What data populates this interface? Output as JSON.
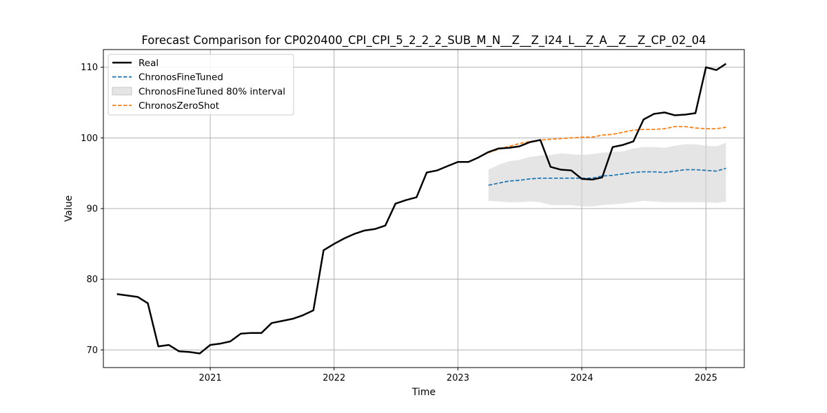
{
  "chart_data": {
    "type": "line",
    "title": "Forecast Comparison for CP020400_CPI_CPI_5_2_2_2_SUB_M_N__Z__Z_I24_L__Z_A__Z__Z_CP_02_04",
    "xlabel": "Time",
    "ylabel": "Value",
    "grid": true,
    "legend_position": "top-left",
    "xlim": [
      "2020-02-21",
      "2025-04-24"
    ],
    "ylim": [
      67.5,
      112.5
    ],
    "x_ticks": [
      "2021",
      "2022",
      "2023",
      "2024",
      "2025"
    ],
    "y_ticks": [
      70,
      80,
      90,
      100,
      110
    ],
    "series": [
      {
        "name": "Real",
        "color": "#000000",
        "style": "solid",
        "points": [
          [
            "2020-04-01",
            77.9
          ],
          [
            "2020-05-01",
            77.7
          ],
          [
            "2020-06-01",
            77.5
          ],
          [
            "2020-07-01",
            76.6
          ],
          [
            "2020-08-01",
            70.5
          ],
          [
            "2020-09-01",
            70.7
          ],
          [
            "2020-10-01",
            69.8
          ],
          [
            "2020-11-01",
            69.7
          ],
          [
            "2020-12-01",
            69.5
          ],
          [
            "2021-01-01",
            70.7
          ],
          [
            "2021-02-01",
            70.9
          ],
          [
            "2021-03-01",
            71.2
          ],
          [
            "2021-04-01",
            72.3
          ],
          [
            "2021-05-01",
            72.4
          ],
          [
            "2021-06-01",
            72.4
          ],
          [
            "2021-07-01",
            73.8
          ],
          [
            "2021-08-01",
            74.1
          ],
          [
            "2021-09-01",
            74.4
          ],
          [
            "2021-10-01",
            74.9
          ],
          [
            "2021-11-01",
            75.6
          ],
          [
            "2021-12-01",
            84.1
          ],
          [
            "2022-01-01",
            85.0
          ],
          [
            "2022-02-01",
            85.8
          ],
          [
            "2022-03-01",
            86.4
          ],
          [
            "2022-04-01",
            86.9
          ],
          [
            "2022-05-01",
            87.1
          ],
          [
            "2022-06-01",
            87.6
          ],
          [
            "2022-07-01",
            90.7
          ],
          [
            "2022-08-01",
            91.2
          ],
          [
            "2022-09-01",
            91.6
          ],
          [
            "2022-10-01",
            95.1
          ],
          [
            "2022-11-01",
            95.4
          ],
          [
            "2022-12-01",
            96.0
          ],
          [
            "2023-01-01",
            96.6
          ],
          [
            "2023-02-01",
            96.6
          ],
          [
            "2023-03-01",
            97.2
          ],
          [
            "2023-04-01",
            98.0
          ],
          [
            "2023-05-01",
            98.5
          ],
          [
            "2023-06-01",
            98.6
          ],
          [
            "2023-07-01",
            98.8
          ],
          [
            "2023-08-01",
            99.4
          ],
          [
            "2023-09-01",
            99.7
          ],
          [
            "2023-10-01",
            95.9
          ],
          [
            "2023-11-01",
            95.5
          ],
          [
            "2023-12-01",
            95.4
          ],
          [
            "2024-01-01",
            94.2
          ],
          [
            "2024-02-01",
            94.1
          ],
          [
            "2024-03-01",
            94.4
          ],
          [
            "2024-04-01",
            98.7
          ],
          [
            "2024-05-01",
            99.0
          ],
          [
            "2024-06-01",
            99.5
          ],
          [
            "2024-07-01",
            102.6
          ],
          [
            "2024-08-01",
            103.4
          ],
          [
            "2024-09-01",
            103.6
          ],
          [
            "2024-10-01",
            103.2
          ],
          [
            "2024-11-01",
            103.3
          ],
          [
            "2024-12-01",
            103.5
          ],
          [
            "2025-01-01",
            110.0
          ],
          [
            "2025-02-01",
            109.6
          ],
          [
            "2025-03-01",
            110.5
          ]
        ]
      },
      {
        "name": "ChronosFineTuned",
        "color": "#1f77b4",
        "style": "dashed",
        "points": [
          [
            "2023-04-01",
            93.3
          ],
          [
            "2023-05-01",
            93.6
          ],
          [
            "2023-06-01",
            93.9
          ],
          [
            "2023-07-01",
            94.0
          ],
          [
            "2023-08-01",
            94.2
          ],
          [
            "2023-09-01",
            94.3
          ],
          [
            "2023-10-01",
            94.3
          ],
          [
            "2023-11-01",
            94.3
          ],
          [
            "2023-12-01",
            94.3
          ],
          [
            "2024-01-01",
            94.3
          ],
          [
            "2024-02-01",
            94.3
          ],
          [
            "2024-03-01",
            94.6
          ],
          [
            "2024-04-01",
            94.7
          ],
          [
            "2024-05-01",
            94.9
          ],
          [
            "2024-06-01",
            95.1
          ],
          [
            "2024-07-01",
            95.2
          ],
          [
            "2024-08-01",
            95.2
          ],
          [
            "2024-09-01",
            95.1
          ],
          [
            "2024-10-01",
            95.3
          ],
          [
            "2024-11-01",
            95.5
          ],
          [
            "2024-12-01",
            95.5
          ],
          [
            "2025-01-01",
            95.4
          ],
          [
            "2025-02-01",
            95.3
          ],
          [
            "2025-03-01",
            95.7
          ]
        ]
      },
      {
        "name": "ChronosZeroShot",
        "color": "#ff7f0e",
        "style": "dashed",
        "points": [
          [
            "2023-04-01",
            97.9
          ],
          [
            "2023-05-01",
            98.4
          ],
          [
            "2023-06-01",
            98.8
          ],
          [
            "2023-07-01",
            99.2
          ],
          [
            "2023-08-01",
            99.5
          ],
          [
            "2023-09-01",
            99.7
          ],
          [
            "2023-10-01",
            99.8
          ],
          [
            "2023-11-01",
            99.9
          ],
          [
            "2023-12-01",
            100.0
          ],
          [
            "2024-01-01",
            100.1
          ],
          [
            "2024-02-01",
            100.1
          ],
          [
            "2024-03-01",
            100.4
          ],
          [
            "2024-04-01",
            100.5
          ],
          [
            "2024-05-01",
            100.8
          ],
          [
            "2024-06-01",
            101.1
          ],
          [
            "2024-07-01",
            101.2
          ],
          [
            "2024-08-01",
            101.2
          ],
          [
            "2024-09-01",
            101.3
          ],
          [
            "2024-10-01",
            101.6
          ],
          [
            "2024-11-01",
            101.6
          ],
          [
            "2024-12-01",
            101.4
          ],
          [
            "2025-01-01",
            101.3
          ],
          [
            "2025-02-01",
            101.3
          ],
          [
            "2025-03-01",
            101.5
          ]
        ]
      }
    ],
    "interval": {
      "name": "ChronosFineTuned 80% interval",
      "color": "#d3d3d3",
      "x": [
        "2023-04-01",
        "2023-05-01",
        "2023-06-01",
        "2023-07-01",
        "2023-08-01",
        "2023-09-01",
        "2023-10-01",
        "2023-11-01",
        "2023-12-01",
        "2024-01-01",
        "2024-02-01",
        "2024-03-01",
        "2024-04-01",
        "2024-05-01",
        "2024-06-01",
        "2024-07-01",
        "2024-08-01",
        "2024-09-01",
        "2024-10-01",
        "2024-11-01",
        "2024-12-01",
        "2025-01-01",
        "2025-02-01",
        "2025-03-01"
      ],
      "lower": [
        91.1,
        91.0,
        90.9,
        90.9,
        91.0,
        90.9,
        90.5,
        90.5,
        90.5,
        90.3,
        90.3,
        90.5,
        90.6,
        90.7,
        90.9,
        91.1,
        91.0,
        90.9,
        90.9,
        90.9,
        90.9,
        90.9,
        90.8,
        91.0
      ],
      "upper": [
        95.5,
        96.2,
        96.7,
        96.9,
        97.3,
        97.5,
        97.6,
        97.8,
        97.7,
        97.6,
        97.7,
        97.9,
        98.0,
        98.1,
        98.5,
        98.7,
        98.7,
        98.6,
        98.9,
        99.1,
        99.1,
        98.9,
        98.8,
        99.3
      ]
    },
    "legend": [
      {
        "label": "Real",
        "kind": "line",
        "color": "#000000",
        "style": "solid"
      },
      {
        "label": "ChronosFineTuned",
        "kind": "line",
        "color": "#1f77b4",
        "style": "dashed"
      },
      {
        "label": "ChronosFineTuned 80% interval",
        "kind": "patch",
        "color": "#d3d3d3"
      },
      {
        "label": "ChronosZeroShot",
        "kind": "line",
        "color": "#ff7f0e",
        "style": "dashed"
      }
    ]
  }
}
